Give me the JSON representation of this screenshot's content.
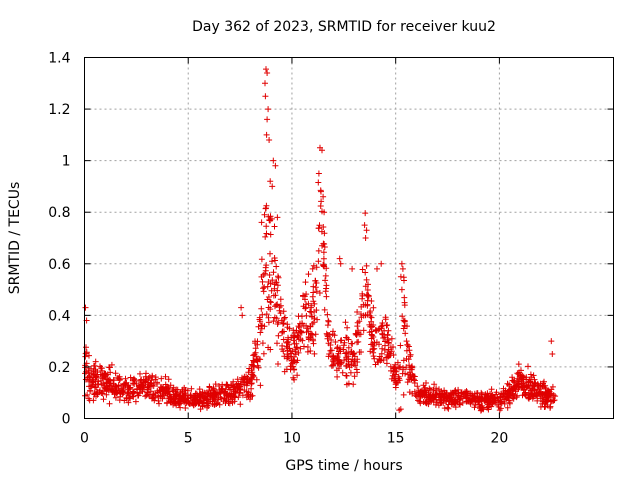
{
  "chart_data": {
    "type": "scatter",
    "title": "Day 362 of 2023, SRMTID for receiver kuu2",
    "xlabel": "GPS time / hours",
    "ylabel": "SRMTID / TECUs",
    "xlim": [
      0,
      25.5
    ],
    "ylim": [
      0,
      1.4
    ],
    "grid": true,
    "marker": "+",
    "colors": {
      "series": "#e00000",
      "grid": "#a0a0a0",
      "axis": "#000000"
    },
    "x_ticks": [
      0,
      5,
      10,
      15,
      20
    ],
    "x_tick_labels": [
      "0",
      "5",
      "10",
      "15",
      "20"
    ],
    "y_ticks": [
      0,
      0.2,
      0.4,
      0.6,
      0.8,
      1.0,
      1.2,
      1.4
    ],
    "y_tick_labels": [
      "0",
      "0.2",
      "0.4",
      "0.6",
      "0.8",
      "1",
      "1.2",
      "1.4"
    ],
    "series": [
      {
        "name": "SRMTID",
        "profile": {
          "x": [
            0,
            0.2,
            0.5,
            1,
            2,
            3,
            4,
            5,
            6,
            7,
            7.5,
            8,
            8.3,
            8.6,
            8.75,
            8.9,
            9.1,
            9.4,
            9.7,
            10,
            10.3,
            10.6,
            10.9,
            11.2,
            11.4,
            11.55,
            11.7,
            12,
            12.3,
            12.6,
            12.9,
            13.2,
            13.5,
            13.7,
            13.9,
            14.2,
            14.5,
            14.8,
            15,
            15.2,
            15.4,
            15.6,
            16,
            17,
            18,
            19,
            20,
            20.5,
            21,
            21.5,
            22,
            22.4,
            22.7
          ],
          "center": [
            0.2,
            0.17,
            0.15,
            0.14,
            0.11,
            0.13,
            0.1,
            0.07,
            0.08,
            0.1,
            0.12,
            0.14,
            0.25,
            0.5,
            0.7,
            0.65,
            0.55,
            0.4,
            0.3,
            0.22,
            0.3,
            0.42,
            0.32,
            0.5,
            0.8,
            0.6,
            0.35,
            0.25,
            0.24,
            0.26,
            0.22,
            0.3,
            0.55,
            0.45,
            0.3,
            0.28,
            0.3,
            0.25,
            0.15,
            0.2,
            0.35,
            0.2,
            0.1,
            0.08,
            0.08,
            0.07,
            0.07,
            0.1,
            0.15,
            0.12,
            0.1,
            0.08,
            0.07
          ],
          "spread": [
            0.12,
            0.1,
            0.08,
            0.07,
            0.05,
            0.06,
            0.05,
            0.04,
            0.04,
            0.05,
            0.06,
            0.07,
            0.1,
            0.35,
            0.5,
            0.4,
            0.3,
            0.15,
            0.12,
            0.1,
            0.12,
            0.15,
            0.12,
            0.3,
            0.3,
            0.2,
            0.12,
            0.1,
            0.1,
            0.12,
            0.1,
            0.12,
            0.25,
            0.15,
            0.12,
            0.12,
            0.12,
            0.1,
            0.08,
            0.2,
            0.25,
            0.1,
            0.05,
            0.04,
            0.04,
            0.04,
            0.04,
            0.05,
            0.07,
            0.06,
            0.06,
            0.05,
            0.04
          ]
        },
        "sample_count": 1800,
        "peaks": [
          {
            "x": 8.75,
            "y": 1.355
          },
          {
            "x": 8.8,
            "y": 1.34
          },
          {
            "x": 8.7,
            "y": 1.3
          },
          {
            "x": 8.72,
            "y": 1.25
          },
          {
            "x": 8.85,
            "y": 1.2
          },
          {
            "x": 8.8,
            "y": 1.16
          },
          {
            "x": 8.78,
            "y": 1.1
          },
          {
            "x": 8.9,
            "y": 1.08
          },
          {
            "x": 9.1,
            "y": 1.0
          },
          {
            "x": 9.2,
            "y": 0.98
          },
          {
            "x": 8.95,
            "y": 0.92
          },
          {
            "x": 9.05,
            "y": 0.9
          },
          {
            "x": 9.3,
            "y": 0.78
          },
          {
            "x": 11.35,
            "y": 1.05
          },
          {
            "x": 11.45,
            "y": 1.04
          },
          {
            "x": 11.3,
            "y": 0.95
          },
          {
            "x": 11.4,
            "y": 0.88
          },
          {
            "x": 11.55,
            "y": 0.8
          },
          {
            "x": 11.5,
            "y": 0.86
          },
          {
            "x": 13.5,
            "y": 0.75
          },
          {
            "x": 13.6,
            "y": 0.73
          },
          {
            "x": 13.55,
            "y": 0.7
          },
          {
            "x": 15.3,
            "y": 0.6
          },
          {
            "x": 15.35,
            "y": 0.58
          },
          {
            "x": 15.25,
            "y": 0.55
          },
          {
            "x": 15.3,
            "y": 0.5
          },
          {
            "x": 22.5,
            "y": 0.3
          },
          {
            "x": 22.55,
            "y": 0.25
          },
          {
            "x": 11.0,
            "y": 0.58
          },
          {
            "x": 10.8,
            "y": 0.56
          },
          {
            "x": 12.9,
            "y": 0.58
          },
          {
            "x": 12.3,
            "y": 0.62
          },
          {
            "x": 12.35,
            "y": 0.6
          },
          {
            "x": 14.1,
            "y": 0.58
          },
          {
            "x": 14.3,
            "y": 0.6
          },
          {
            "x": 0.05,
            "y": 0.43
          },
          {
            "x": 0.1,
            "y": 0.38
          },
          {
            "x": 7.55,
            "y": 0.43
          },
          {
            "x": 7.6,
            "y": 0.4
          }
        ]
      }
    ]
  }
}
